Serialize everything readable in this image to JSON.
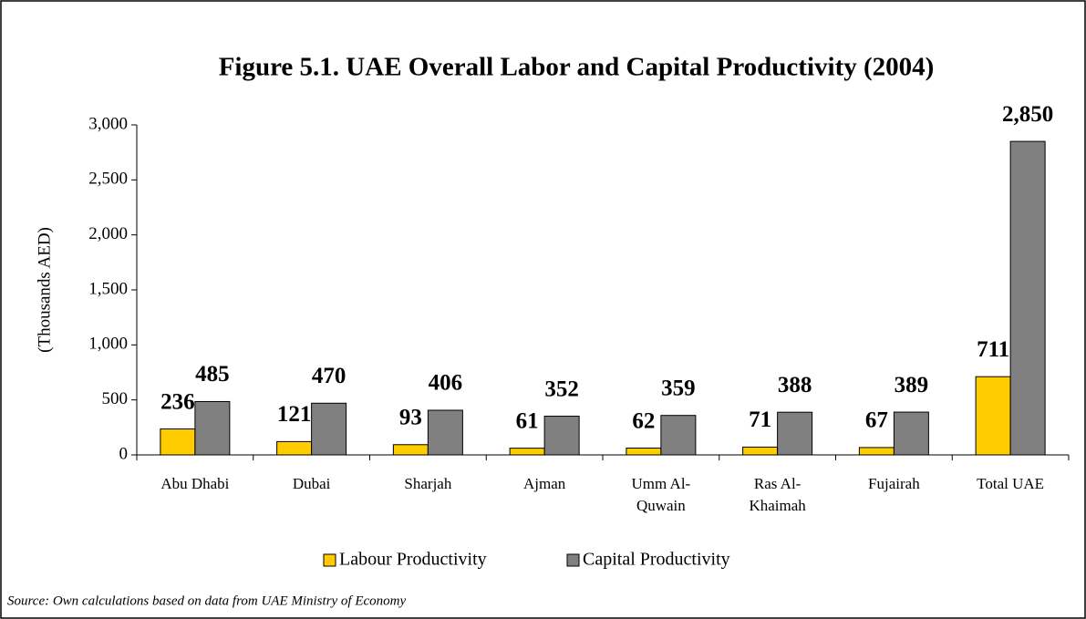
{
  "chart_data": {
    "type": "bar",
    "title": "Figure 5.1. UAE Overall Labor and Capital Productivity (2004)",
    "y_label": "(Thousands AED)",
    "source": "Source: Own calculations based on data from UAE Ministry of Economy",
    "categories": [
      "Abu Dhabi",
      "Dubai",
      "Sharjah",
      "Ajman",
      "Umm Al- Quwain",
      "Ras Al- Khaimah",
      "Fujairah",
      "Total UAE"
    ],
    "series": [
      {
        "name": "Labour Productivity",
        "color": "#ffcc00",
        "values": [
          236,
          121,
          93,
          61,
          62,
          71,
          67,
          711
        ]
      },
      {
        "name": "Capital Productivity",
        "color": "#808080",
        "values": [
          485,
          470,
          406,
          352,
          359,
          388,
          389,
          2850
        ],
        "value_labels": [
          "485",
          "470",
          "406",
          "352",
          "359",
          "388",
          "389",
          "2,850"
        ]
      }
    ],
    "ylim": [
      0,
      3000
    ],
    "yticks": [
      0,
      500,
      {
        "value": 1000,
        "label": "1,000"
      },
      {
        "value": 1500,
        "label": "1,500"
      },
      {
        "value": 2000,
        "label": "2,000"
      },
      {
        "value": 2500,
        "label": "2,500"
      },
      {
        "value": 3000,
        "label": "3,000"
      }
    ],
    "grid": false,
    "legend": "bottom"
  }
}
